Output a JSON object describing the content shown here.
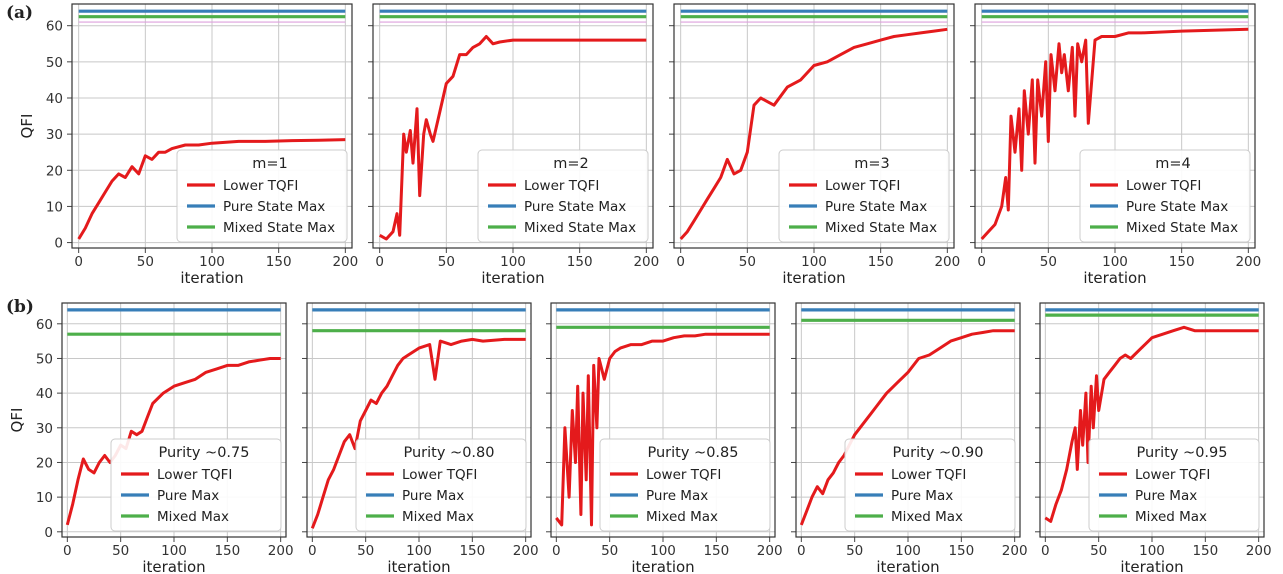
{
  "figure": {
    "row_labels": [
      "(a)",
      "(b)"
    ]
  },
  "colors": {
    "lower_tqfi": "#e41a1c",
    "pure_max": "#377eb8",
    "mixed_max": "#4daf4a",
    "grid": "#c8c8c8",
    "reference_line": "#dda0dd"
  },
  "chart_data": [
    {
      "type": "line",
      "row": "a",
      "legend_title": "m=1",
      "xlabel": "iteration",
      "ylabel": "QFI",
      "xlim": [
        -5,
        205
      ],
      "ylim": [
        -1.5,
        66
      ],
      "xticks": [
        0,
        50,
        100,
        150,
        200
      ],
      "yticks": [
        0,
        10,
        20,
        30,
        40,
        50,
        60
      ],
      "grid": true,
      "legend_position": "lower right",
      "series": [
        {
          "name": "Lower TQFI",
          "key": "tqfi",
          "x": [
            0,
            5,
            10,
            15,
            20,
            25,
            30,
            35,
            40,
            45,
            50,
            55,
            60,
            65,
            70,
            80,
            90,
            100,
            120,
            140,
            160,
            180,
            200
          ],
          "y": [
            1,
            4,
            8,
            11,
            14,
            17,
            19,
            18,
            21,
            19,
            24,
            23,
            25,
            25,
            26,
            27,
            27,
            27.5,
            28,
            28,
            28.2,
            28.3,
            28.5
          ]
        },
        {
          "name": "Pure State Max",
          "key": "pure",
          "x": [
            0,
            200
          ],
          "y": [
            64,
            64
          ]
        },
        {
          "name": "Mixed State Max",
          "key": "mixed",
          "x": [
            0,
            200
          ],
          "y": [
            62.5,
            62.5
          ]
        }
      ]
    },
    {
      "type": "line",
      "row": "a",
      "legend_title": "m=2",
      "xlabel": "iteration",
      "ylabel": "",
      "xlim": [
        -5,
        205
      ],
      "ylim": [
        -1.5,
        66
      ],
      "xticks": [
        0,
        50,
        100,
        150,
        200
      ],
      "yticks": [
        0,
        10,
        20,
        30,
        40,
        50,
        60
      ],
      "grid": true,
      "legend_position": "lower right",
      "series": [
        {
          "name": "Lower TQFI",
          "key": "tqfi",
          "x": [
            0,
            5,
            10,
            13,
            15,
            18,
            20,
            23,
            25,
            28,
            30,
            33,
            35,
            38,
            40,
            45,
            50,
            55,
            60,
            65,
            70,
            75,
            80,
            85,
            90,
            100,
            110,
            120,
            150,
            200
          ],
          "y": [
            2,
            1,
            3,
            8,
            2,
            30,
            25,
            31,
            22,
            37,
            13,
            30,
            34,
            30,
            28,
            36,
            44,
            46,
            52,
            52,
            54,
            55,
            57,
            55,
            55.5,
            56,
            56,
            56,
            56,
            56
          ]
        },
        {
          "name": "Pure State Max",
          "key": "pure",
          "x": [
            0,
            200
          ],
          "y": [
            64,
            64
          ]
        },
        {
          "name": "Mixed State Max",
          "key": "mixed",
          "x": [
            0,
            200
          ],
          "y": [
            62.5,
            62.5
          ]
        }
      ]
    },
    {
      "type": "line",
      "row": "a",
      "legend_title": "m=3",
      "xlabel": "iteration",
      "ylabel": "",
      "xlim": [
        -5,
        205
      ],
      "ylim": [
        -1.5,
        66
      ],
      "xticks": [
        0,
        50,
        100,
        150,
        200
      ],
      "yticks": [
        0,
        10,
        20,
        30,
        40,
        50,
        60
      ],
      "grid": true,
      "legend_position": "lower right",
      "series": [
        {
          "name": "Lower TQFI",
          "key": "tqfi",
          "x": [
            0,
            5,
            10,
            15,
            20,
            25,
            30,
            35,
            40,
            45,
            50,
            55,
            60,
            65,
            70,
            80,
            90,
            100,
            110,
            120,
            130,
            140,
            150,
            160,
            170,
            180,
            190,
            200
          ],
          "y": [
            1,
            3,
            6,
            9,
            12,
            15,
            18,
            23,
            19,
            20,
            25,
            38,
            40,
            39,
            38,
            43,
            45,
            49,
            50,
            52,
            54,
            55,
            56,
            57,
            57.5,
            58,
            58.5,
            59
          ]
        },
        {
          "name": "Pure State Max",
          "key": "pure",
          "x": [
            0,
            200
          ],
          "y": [
            64,
            64
          ]
        },
        {
          "name": "Mixed State Max",
          "key": "mixed",
          "x": [
            0,
            200
          ],
          "y": [
            62.5,
            62.5
          ]
        }
      ]
    },
    {
      "type": "line",
      "row": "a",
      "legend_title": "m=4",
      "xlabel": "iteration",
      "ylabel": "",
      "xlim": [
        -5,
        205
      ],
      "ylim": [
        -1.5,
        66
      ],
      "xticks": [
        0,
        50,
        100,
        150,
        200
      ],
      "yticks": [
        0,
        10,
        20,
        30,
        40,
        50,
        60
      ],
      "grid": true,
      "legend_position": "lower right",
      "series": [
        {
          "name": "Lower TQFI",
          "key": "tqfi",
          "x": [
            0,
            5,
            10,
            15,
            18,
            20,
            22,
            25,
            28,
            30,
            32,
            35,
            38,
            40,
            42,
            45,
            48,
            50,
            52,
            55,
            58,
            60,
            62,
            65,
            68,
            70,
            72,
            75,
            78,
            80,
            85,
            90,
            100,
            110,
            120,
            150,
            200
          ],
          "y": [
            1,
            3,
            5,
            10,
            18,
            9,
            35,
            25,
            37,
            20,
            42,
            30,
            45,
            22,
            45,
            35,
            50,
            28,
            52,
            42,
            55,
            47,
            52,
            42,
            54,
            35,
            55,
            50,
            56,
            33,
            56,
            57,
            57,
            58,
            58,
            58.5,
            59
          ]
        },
        {
          "name": "Pure State Max",
          "key": "pure",
          "x": [
            0,
            200
          ],
          "y": [
            64,
            64
          ]
        },
        {
          "name": "Mixed State Max",
          "key": "mixed",
          "x": [
            0,
            200
          ],
          "y": [
            62.5,
            62.5
          ]
        }
      ]
    },
    {
      "type": "line",
      "row": "b",
      "legend_title": "Purity  ~0.75",
      "xlabel": "iteration",
      "ylabel": "QFI",
      "xlim": [
        -5,
        205
      ],
      "ylim": [
        -1.5,
        66
      ],
      "xticks": [
        0,
        50,
        100,
        150,
        200
      ],
      "yticks": [
        0,
        10,
        20,
        30,
        40,
        50,
        60
      ],
      "grid": true,
      "legend_position": "lower right",
      "series": [
        {
          "name": "Lower TQFI",
          "key": "tqfi",
          "x": [
            0,
            5,
            10,
            15,
            20,
            25,
            30,
            35,
            40,
            45,
            50,
            55,
            60,
            65,
            70,
            75,
            80,
            90,
            100,
            110,
            120,
            130,
            140,
            150,
            160,
            170,
            180,
            190,
            200
          ],
          "y": [
            2,
            8,
            15,
            21,
            18,
            17,
            20,
            22,
            20,
            22,
            25,
            24,
            29,
            28,
            29,
            33,
            37,
            40,
            42,
            43,
            44,
            46,
            47,
            48,
            48,
            49,
            49.5,
            50,
            50
          ]
        },
        {
          "name": "Pure Max",
          "key": "pure",
          "x": [
            0,
            200
          ],
          "y": [
            64,
            64
          ]
        },
        {
          "name": "Mixed Max",
          "key": "mixed",
          "x": [
            0,
            200
          ],
          "y": [
            57,
            57
          ]
        }
      ]
    },
    {
      "type": "line",
      "row": "b",
      "legend_title": "Purity  ~0.80",
      "xlabel": "iteration",
      "ylabel": "",
      "xlim": [
        -5,
        205
      ],
      "ylim": [
        -1.5,
        66
      ],
      "xticks": [
        0,
        50,
        100,
        150,
        200
      ],
      "yticks": [
        0,
        10,
        20,
        30,
        40,
        50,
        60
      ],
      "grid": true,
      "legend_position": "lower right",
      "series": [
        {
          "name": "Lower TQFI",
          "key": "tqfi",
          "x": [
            0,
            5,
            10,
            15,
            20,
            25,
            30,
            35,
            40,
            45,
            50,
            55,
            60,
            65,
            70,
            75,
            80,
            85,
            90,
            100,
            110,
            115,
            120,
            130,
            140,
            150,
            160,
            180,
            200
          ],
          "y": [
            1,
            5,
            10,
            15,
            18,
            22,
            26,
            28,
            24,
            32,
            35,
            38,
            37,
            40,
            42,
            45,
            48,
            50,
            51,
            53,
            54,
            44,
            55,
            54,
            55,
            55.5,
            55,
            55.5,
            55.5
          ]
        },
        {
          "name": "Pure Max",
          "key": "pure",
          "x": [
            0,
            200
          ],
          "y": [
            64,
            64
          ]
        },
        {
          "name": "Mixed Max",
          "key": "mixed",
          "x": [
            0,
            200
          ],
          "y": [
            58,
            58
          ]
        }
      ]
    },
    {
      "type": "line",
      "row": "b",
      "legend_title": "Purity  ~0.85",
      "xlabel": "iteration",
      "ylabel": "",
      "xlim": [
        -5,
        205
      ],
      "ylim": [
        -1.5,
        66
      ],
      "xticks": [
        0,
        50,
        100,
        150,
        200
      ],
      "yticks": [
        0,
        10,
        20,
        30,
        40,
        50,
        60
      ],
      "grid": true,
      "legend_position": "lower right",
      "series": [
        {
          "name": "Lower TQFI",
          "key": "tqfi",
          "x": [
            0,
            5,
            8,
            12,
            15,
            18,
            20,
            23,
            25,
            28,
            30,
            33,
            35,
            38,
            40,
            45,
            50,
            55,
            60,
            70,
            80,
            90,
            100,
            110,
            120,
            130,
            140,
            150,
            160,
            180,
            200
          ],
          "y": [
            4,
            2,
            30,
            10,
            35,
            20,
            42,
            5,
            40,
            15,
            45,
            2,
            48,
            30,
            50,
            44,
            50,
            52,
            53,
            54,
            54,
            55,
            55,
            56,
            56.5,
            56.5,
            57,
            57,
            57,
            57,
            57
          ]
        },
        {
          "name": "Pure Max",
          "key": "pure",
          "x": [
            0,
            200
          ],
          "y": [
            64,
            64
          ]
        },
        {
          "name": "Mixed Max",
          "key": "mixed",
          "x": [
            0,
            200
          ],
          "y": [
            59,
            59
          ]
        }
      ]
    },
    {
      "type": "line",
      "row": "b",
      "legend_title": "Purity  ~0.90",
      "xlabel": "iteration",
      "ylabel": "",
      "xlim": [
        -5,
        205
      ],
      "ylim": [
        -1.5,
        66
      ],
      "xticks": [
        0,
        50,
        100,
        150,
        200
      ],
      "yticks": [
        0,
        10,
        20,
        30,
        40,
        50,
        60
      ],
      "grid": true,
      "legend_position": "lower right",
      "series": [
        {
          "name": "Lower TQFI",
          "key": "tqfi",
          "x": [
            0,
            5,
            10,
            15,
            20,
            25,
            30,
            35,
            40,
            45,
            50,
            55,
            60,
            65,
            70,
            75,
            80,
            90,
            100,
            110,
            120,
            130,
            140,
            150,
            160,
            170,
            180,
            190,
            200
          ],
          "y": [
            2,
            6,
            10,
            13,
            11,
            15,
            17,
            20,
            22,
            25,
            28,
            30,
            32,
            34,
            36,
            38,
            40,
            43,
            46,
            50,
            51,
            53,
            55,
            56,
            57,
            57.5,
            58,
            58,
            58
          ]
        },
        {
          "name": "Pure Max",
          "key": "pure",
          "x": [
            0,
            200
          ],
          "y": [
            64,
            64
          ]
        },
        {
          "name": "Mixed Max",
          "key": "mixed",
          "x": [
            0,
            200
          ],
          "y": [
            61,
            61
          ]
        }
      ]
    },
    {
      "type": "line",
      "row": "b",
      "legend_title": "Purity  ~0.95",
      "xlabel": "iteration",
      "ylabel": "",
      "xlim": [
        -5,
        205
      ],
      "ylim": [
        -1.5,
        66
      ],
      "xticks": [
        0,
        50,
        100,
        150,
        200
      ],
      "yticks": [
        0,
        10,
        20,
        30,
        40,
        50,
        60
      ],
      "grid": true,
      "legend_position": "lower right",
      "series": [
        {
          "name": "Lower TQFI",
          "key": "tqfi",
          "x": [
            0,
            5,
            10,
            15,
            20,
            25,
            28,
            30,
            33,
            35,
            38,
            40,
            43,
            45,
            48,
            50,
            55,
            60,
            65,
            70,
            75,
            80,
            90,
            100,
            110,
            120,
            130,
            140,
            160,
            180,
            200
          ],
          "y": [
            4,
            3,
            8,
            12,
            18,
            26,
            30,
            18,
            35,
            25,
            40,
            20,
            42,
            30,
            45,
            35,
            44,
            46,
            48,
            50,
            51,
            50,
            53,
            56,
            57,
            58,
            59,
            58,
            58,
            58,
            58
          ]
        },
        {
          "name": "Pure Max",
          "key": "pure",
          "x": [
            0,
            200
          ],
          "y": [
            64,
            64
          ]
        },
        {
          "name": "Mixed Max",
          "key": "mixed",
          "x": [
            0,
            200
          ],
          "y": [
            62.5,
            62.5
          ]
        }
      ]
    }
  ]
}
